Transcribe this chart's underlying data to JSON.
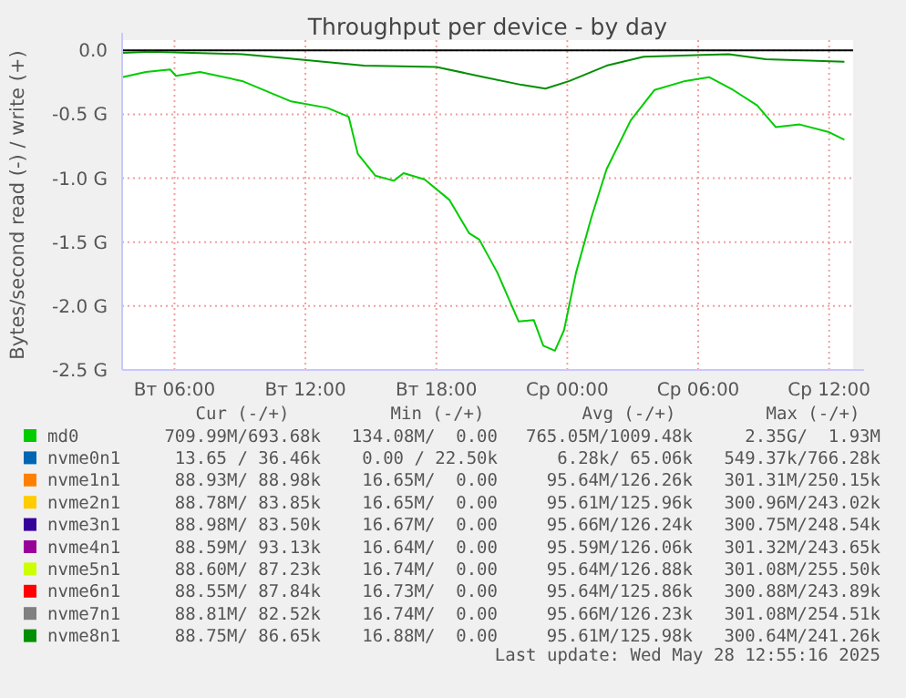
{
  "chart_data": {
    "type": "line",
    "title": "Throughput per device - by day",
    "ylabel": "Bytes/second read (-) / write (+)",
    "xlim": [
      "2025-05-27T03:36",
      "2025-05-28T13:06"
    ],
    "xticks": [
      {
        "value": "2025-05-27T06:00",
        "label": "Вт 06:00"
      },
      {
        "value": "2025-05-27T12:00",
        "label": "Вт 12:00"
      },
      {
        "value": "2025-05-27T18:00",
        "label": "Вт 18:00"
      },
      {
        "value": "2025-05-28T00:00",
        "label": "Ср 00:00"
      },
      {
        "value": "2025-05-28T06:00",
        "label": "Ср 06:00"
      },
      {
        "value": "2025-05-28T12:00",
        "label": "Ср 12:00"
      }
    ],
    "ylim": [
      -2.5,
      0.08
    ],
    "yticks": [
      {
        "value": 0,
        "label": "0.0"
      },
      {
        "value": -0.5,
        "label": "-0.5 G"
      },
      {
        "value": -1,
        "label": "-1.0 G"
      },
      {
        "value": -1.5,
        "label": "-1.5 G"
      },
      {
        "value": -2,
        "label": "-2.0 G"
      },
      {
        "value": -2.5,
        "label": "-2.5 G"
      }
    ],
    "grid": true,
    "legend": "bottom",
    "line_style": "solid",
    "ref_lines": [
      {
        "axis": "y",
        "value": 0,
        "color": "#000000"
      }
    ],
    "series": [
      {
        "name": "md0",
        "color": "#00cc00",
        "x": [
          "2025-05-27T03:36",
          "2025-05-27T04:41",
          "2025-05-27T05:48",
          "2025-05-27T06:04",
          "2025-05-27T07:10",
          "2025-05-27T09:06",
          "2025-05-27T11:21",
          "2025-05-27T13:00",
          "2025-05-27T13:59",
          "2025-05-27T14:24",
          "2025-05-27T15:12",
          "2025-05-27T16:03",
          "2025-05-27T16:30",
          "2025-05-27T17:28",
          "2025-05-27T18:36",
          "2025-05-27T19:30",
          "2025-05-27T19:58",
          "2025-05-27T20:48",
          "2025-05-27T21:46",
          "2025-05-27T22:28",
          "2025-05-27T22:54",
          "2025-05-27T23:26",
          "2025-05-27T23:51",
          "2025-05-28T00:24",
          "2025-05-28T01:06",
          "2025-05-28T01:48",
          "2025-05-28T02:54",
          "2025-05-28T04:00",
          "2025-05-28T05:24",
          "2025-05-28T06:30",
          "2025-05-28T07:36",
          "2025-05-28T08:42",
          "2025-05-28T09:33",
          "2025-05-28T10:39",
          "2025-05-28T12:00",
          "2025-05-28T12:42"
        ],
        "values": [
          -0.21,
          -0.17,
          -0.15,
          -0.2,
          -0.17,
          -0.24,
          -0.4,
          -0.45,
          -0.52,
          -0.81,
          -0.98,
          -1.02,
          -0.96,
          -1.01,
          -1.17,
          -1.43,
          -1.48,
          -1.74,
          -2.12,
          -2.11,
          -2.31,
          -2.35,
          -2.19,
          -1.74,
          -1.31,
          -0.93,
          -0.55,
          -0.31,
          -0.24,
          -0.21,
          -0.31,
          -0.43,
          -0.6,
          -0.58,
          -0.64,
          -0.7
        ]
      },
      {
        "name": "nvme0n1",
        "color": "#0066b3"
      },
      {
        "name": "nvme1n1",
        "color": "#ff8000"
      },
      {
        "name": "nvme2n1",
        "color": "#ffcc00"
      },
      {
        "name": "nvme3n1",
        "color": "#330099"
      },
      {
        "name": "nvme4n1",
        "color": "#990099"
      },
      {
        "name": "nvme5n1",
        "color": "#ccff00"
      },
      {
        "name": "nvme6n1",
        "color": "#ff0000"
      },
      {
        "name": "nvme7n1",
        "color": "#808080"
      },
      {
        "name": "nvme8n1",
        "color": "#008f00",
        "x": [
          "2025-05-27T03:36",
          "2025-05-27T04:54",
          "2025-05-27T09:06",
          "2025-05-27T11:04",
          "2025-05-27T14:41",
          "2025-05-27T18:00",
          "2025-05-27T20:12",
          "2025-05-27T21:54",
          "2025-05-27T23:00",
          "2025-05-28T00:06",
          "2025-05-28T01:48",
          "2025-05-28T03:30",
          "2025-05-28T07:24",
          "2025-05-28T09:06",
          "2025-05-28T12:42"
        ],
        "values": [
          -0.02,
          -0.01,
          -0.03,
          -0.06,
          -0.12,
          -0.13,
          -0.21,
          -0.27,
          -0.3,
          -0.24,
          -0.12,
          -0.05,
          -0.03,
          -0.07,
          -0.09
        ]
      }
    ],
    "annotations": [
      "Cur (-/+)",
      "Min (-/+)",
      "Avg (-/+)",
      "Max (-/+)",
      "709.99M/693.68k",
      "134.08M/  0.00",
      "765.05M/1009.48k",
      "2.35G/  1.93M",
      "13.65 / 36.46k",
      "0.00 / 22.50k",
      "6.28k/ 65.06k",
      "549.37k/766.28k",
      "88.93M/ 88.98k",
      "16.65M/  0.00",
      "95.64M/126.26k",
      "301.31M/250.15k",
      "88.78M/ 83.85k",
      "16.65M/  0.00",
      "95.61M/125.96k",
      "300.96M/243.02k",
      "88.98M/ 83.50k",
      "16.67M/  0.00",
      "95.66M/126.24k",
      "300.75M/248.54k",
      "88.59M/ 93.13k",
      "16.64M/  0.00",
      "95.59M/126.06k",
      "301.32M/243.65k",
      "88.60M/ 87.23k",
      "16.74M/  0.00",
      "95.64M/126.88k",
      "301.08M/255.50k",
      "88.55M/ 87.84k",
      "16.73M/  0.00",
      "95.64M/125.86k",
      "300.88M/243.89k",
      "88.81M/ 82.52k",
      "16.74M/  0.00",
      "95.66M/126.23k",
      "301.08M/254.51k",
      "88.75M/ 86.65k",
      "16.88M/  0.00",
      "95.61M/125.98k",
      "300.64M/241.26k",
      "Last update: Wed May 28 12:55:16 2025"
    ]
  }
}
